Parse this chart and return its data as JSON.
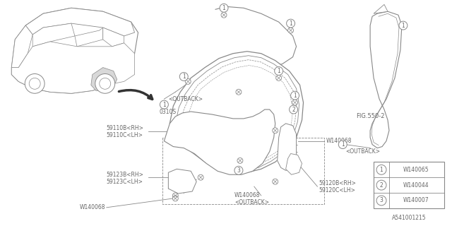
{
  "bg_color": "#ffffff",
  "line_color": "#888888",
  "text_color": "#666666",
  "fig_ref": "FIG.550-2",
  "diagram_ref": "A541001215",
  "legend_items": [
    {
      "num": "1",
      "code": "W140065"
    },
    {
      "num": "2",
      "code": "W140044"
    },
    {
      "num": "3",
      "code": "W140007"
    }
  ],
  "lw": 0.7
}
